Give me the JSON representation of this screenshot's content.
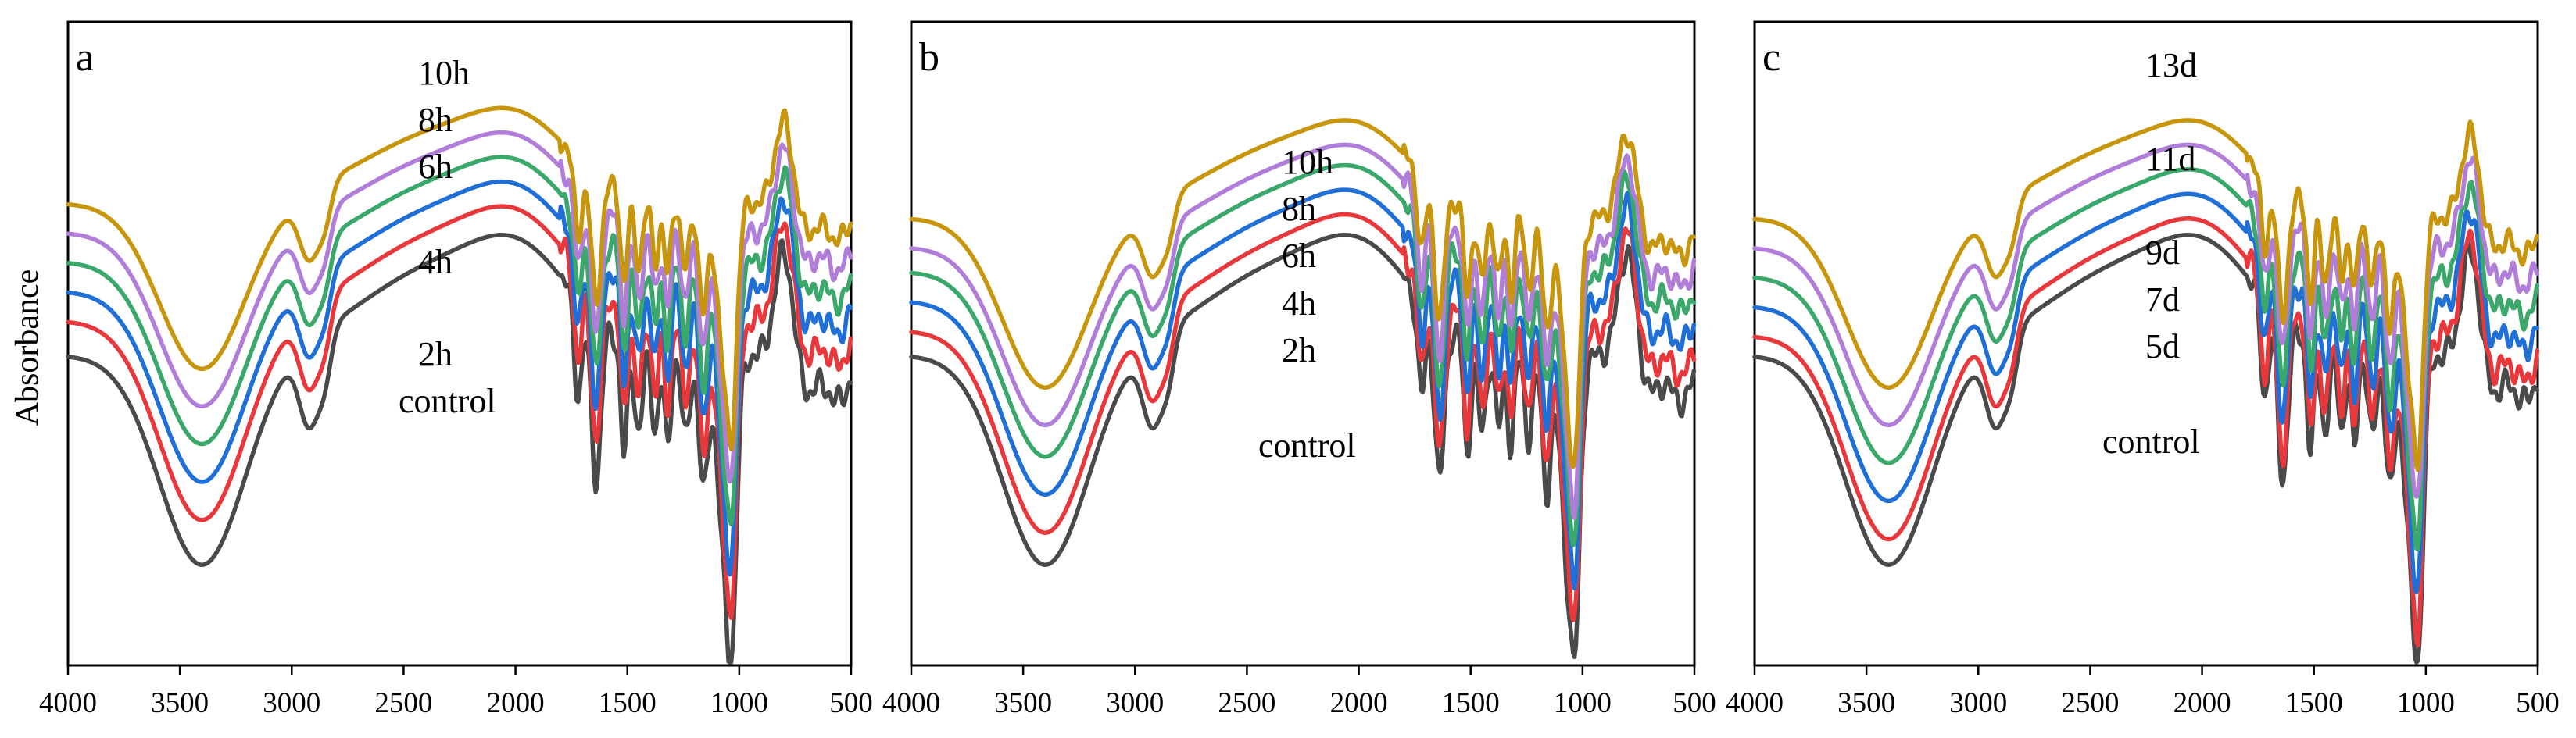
{
  "figure": {
    "ylabel": "Absorbance"
  },
  "colors": {
    "control": "#4a4a4a",
    "red": "#e8383c",
    "blue": "#1f6fd6",
    "green": "#3aa86a",
    "purple": "#b07ed8",
    "gold": "#c8960c"
  },
  "chart_data": [
    {
      "type": "line",
      "panel": "a",
      "xlabel": "",
      "ylabel": "Absorbance",
      "xlim": [
        4000,
        500
      ],
      "xticks": [
        4000,
        3500,
        3000,
        2500,
        2000,
        1500,
        1000,
        500
      ],
      "series": [
        {
          "name": "control",
          "label": "control",
          "color": "#4a4a4a",
          "offset": 0.0
        },
        {
          "name": "2h",
          "label": "2h",
          "color": "#e8383c",
          "offset": 0.07
        },
        {
          "name": "4h",
          "label": "4h",
          "color": "#1f6fd6",
          "offset": 0.13
        },
        {
          "name": "6h",
          "label": "6h",
          "color": "#3aa86a",
          "offset": 0.19
        },
        {
          "name": "8h",
          "label": "8h",
          "color": "#b07ed8",
          "offset": 0.25
        },
        {
          "name": "10h",
          "label": "10h",
          "color": "#c8960c",
          "offset": 0.31
        }
      ]
    },
    {
      "type": "line",
      "panel": "b",
      "xlabel": "",
      "ylabel": "",
      "xlim": [
        4000,
        500
      ],
      "xticks": [
        4000,
        3500,
        3000,
        2500,
        2000,
        1500,
        1000,
        500
      ],
      "series": [
        {
          "name": "control",
          "label": "control",
          "color": "#4a4a4a",
          "offset": 0.0
        },
        {
          "name": "2h",
          "label": "2h",
          "color": "#e8383c",
          "offset": 0.05
        },
        {
          "name": "4h",
          "label": "4h",
          "color": "#1f6fd6",
          "offset": 0.11
        },
        {
          "name": "6h",
          "label": "6h",
          "color": "#3aa86a",
          "offset": 0.17
        },
        {
          "name": "8h",
          "label": "8h",
          "color": "#b07ed8",
          "offset": 0.22
        },
        {
          "name": "10h",
          "label": "10h",
          "color": "#c8960c",
          "offset": 0.28
        }
      ]
    },
    {
      "type": "line",
      "panel": "c",
      "xlabel": "",
      "ylabel": "",
      "xlim": [
        4000,
        500
      ],
      "xticks": [
        4000,
        3500,
        3000,
        2500,
        2000,
        1500,
        1000,
        500
      ],
      "series": [
        {
          "name": "control",
          "label": "control",
          "color": "#4a4a4a",
          "offset": 0.0
        },
        {
          "name": "5d",
          "label": "5d",
          "color": "#e8383c",
          "offset": 0.04
        },
        {
          "name": "7d",
          "label": "7d",
          "color": "#1f6fd6",
          "offset": 0.1
        },
        {
          "name": "9d",
          "label": "9d",
          "color": "#3aa86a",
          "offset": 0.16
        },
        {
          "name": "11d",
          "label": "11d",
          "color": "#b07ed8",
          "offset": 0.22
        },
        {
          "name": "13d",
          "label": "13d",
          "color": "#c8960c",
          "offset": 0.28
        }
      ]
    }
  ]
}
